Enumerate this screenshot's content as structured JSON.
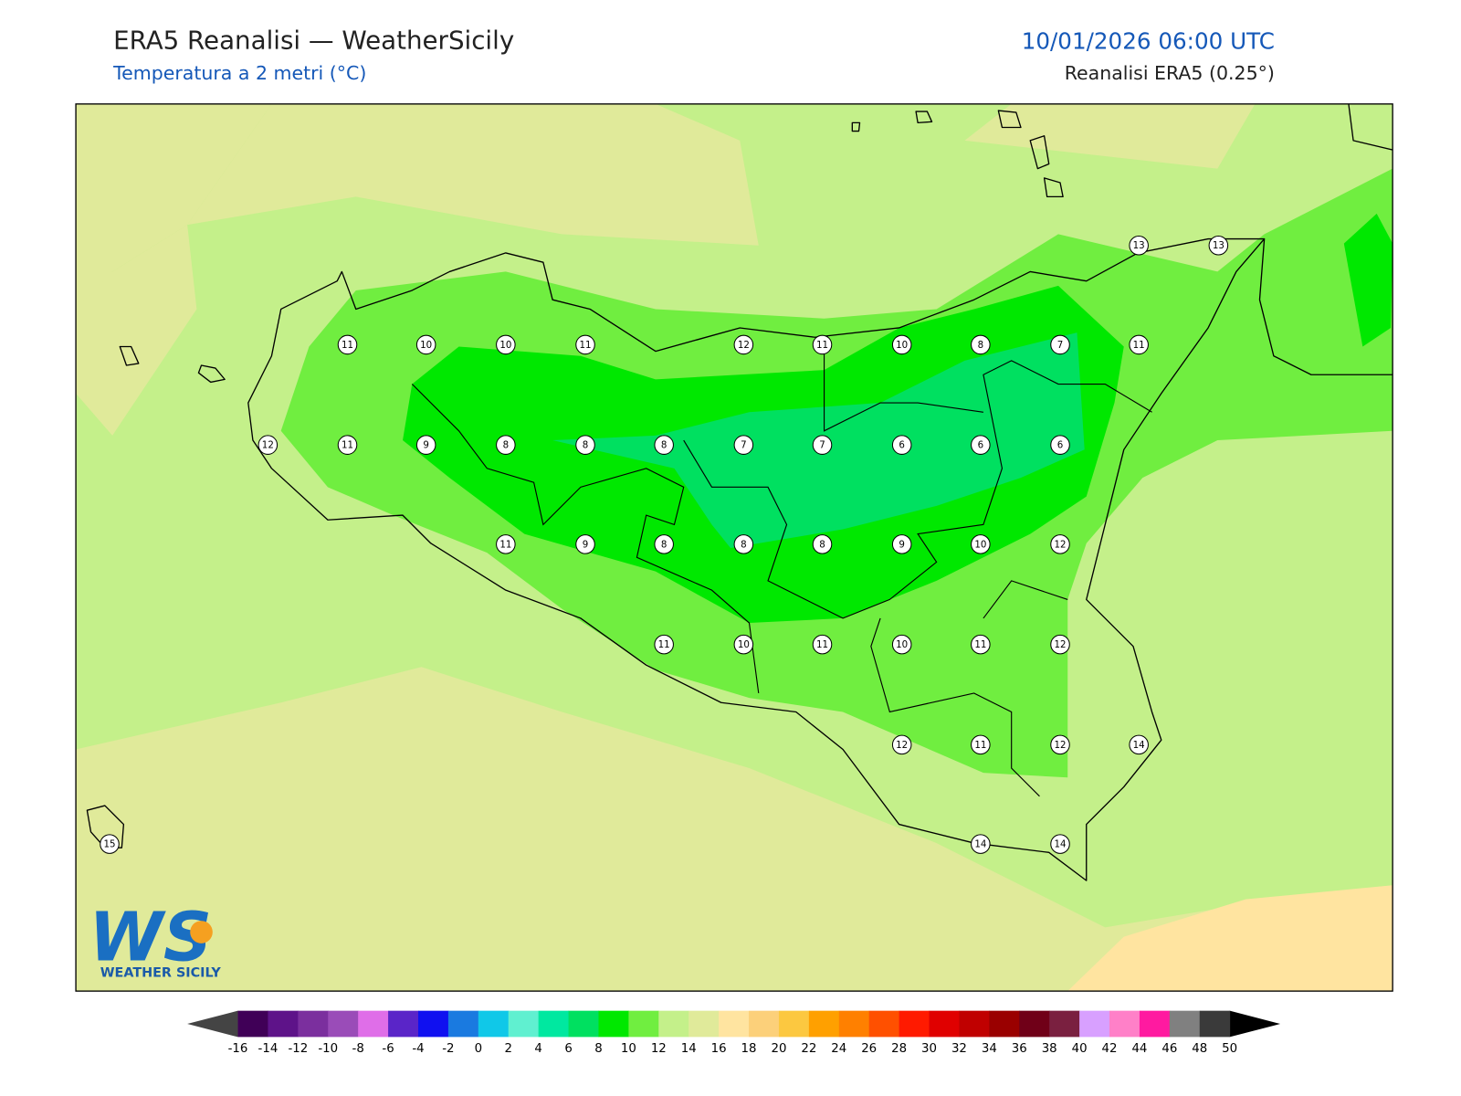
{
  "header": {
    "title": "ERA5 Reanalisi — WeatherSicily",
    "subtitle": "Temperatura a 2 metri (°C)",
    "datetime": "10/01/2026 06:00 UTC",
    "source": "Reanalisi ERA5 (0.25°)"
  },
  "stations": [
    13,
    13,
    11,
    10,
    10,
    11,
    12,
    11,
    10,
    8,
    7,
    11,
    12,
    11,
    9,
    8,
    8,
    8,
    7,
    7,
    6,
    6,
    6,
    11,
    9,
    8,
    8,
    8,
    9,
    10,
    12,
    11,
    10,
    11,
    10,
    11,
    12,
    12,
    11,
    12,
    14,
    15,
    14,
    14
  ],
  "colorbar": {
    "ticks": [
      -16,
      -14,
      -12,
      -10,
      -8,
      -6,
      -4,
      -2,
      0,
      2,
      4,
      6,
      8,
      10,
      12,
      14,
      16,
      18,
      20,
      22,
      24,
      26,
      28,
      30,
      32,
      34,
      36,
      38,
      40,
      42,
      44,
      46,
      48,
      50
    ],
    "colors": [
      "#400057",
      "#5e1389",
      "#7b2f9e",
      "#9a4cb8",
      "#df6ee8",
      "#5a25c8",
      "#1010f0",
      "#1a7ae0",
      "#10c8e8",
      "#60f0d0",
      "#00e8a0",
      "#00e060",
      "#00e800",
      "#70ee40",
      "#c4f08a",
      "#e0ea9a",
      "#ffe4a0",
      "#fcd07a",
      "#fcc840",
      "#ffa000",
      "#ff8000",
      "#ff5000",
      "#ff1a00",
      "#e00000",
      "#c00000",
      "#9a0000",
      "#700018",
      "#7a2040",
      "#d8a0ff",
      "#ff80c8",
      "#ff1aa0",
      "#808080",
      "#3a3a3a"
    ],
    "under_color": "#444444",
    "over_color": "#000000"
  },
  "logo": {
    "mark": "WS",
    "text": "WEATHER SICILY"
  }
}
